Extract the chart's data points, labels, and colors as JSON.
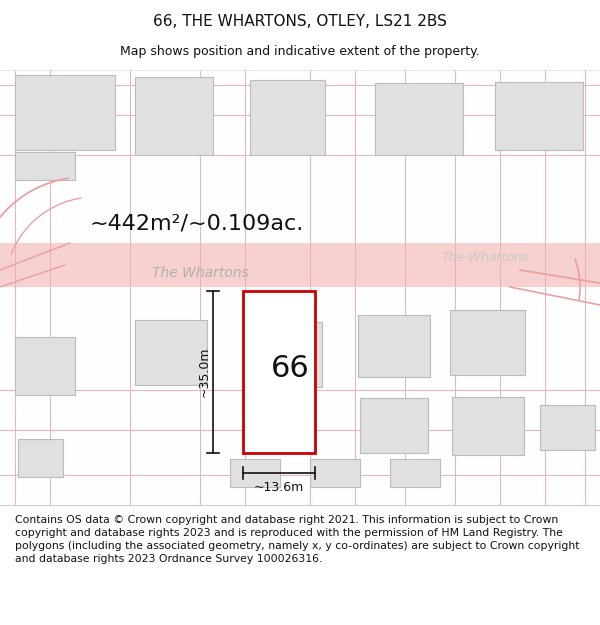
{
  "title": "66, THE WHARTONS, OTLEY, LS21 2BS",
  "subtitle": "Map shows position and indicative extent of the property.",
  "footer": "Contains OS data © Crown copyright and database right 2021. This information is subject to Crown copyright and database rights 2023 and is reproduced with the permission of HM Land Registry. The polygons (including the associated geometry, namely x, y co-ordinates) are subject to Crown copyright and database rights 2023 Ordnance Survey 100026316.",
  "area_label": "~442m²/~0.109ac.",
  "street_label_1": "The Whartons",
  "street_label_2": "The-Whartons",
  "plot_number": "66",
  "dim_height": "~35.0m",
  "dim_width": "~13.6m",
  "bg_color": "#ffffff",
  "road_fill": "#f7d0d0",
  "building_fill": "#e0e0e0",
  "building_edge": "#bbbbbb",
  "plot_fill": "#ffffff",
  "plot_edge": "#cc0000",
  "dim_color": "#111111",
  "text_color": "#111111",
  "street_color_1": "#b0b0b0",
  "street_color_2": "#c8c8c8",
  "grid_line_color": "#f0b0b0",
  "title_fontsize": 11,
  "subtitle_fontsize": 9,
  "footer_fontsize": 7.8,
  "area_fontsize": 16,
  "street_fontsize": 10,
  "plot_num_fontsize": 22,
  "dim_fontsize": 9
}
